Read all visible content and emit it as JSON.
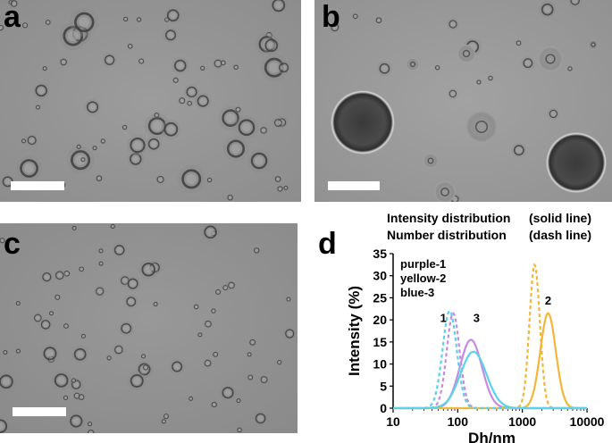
{
  "panels": {
    "a": {
      "label": "a"
    },
    "b": {
      "label": "b"
    },
    "c": {
      "label": "c"
    },
    "d": {
      "label": "d"
    }
  },
  "colors": {
    "micrograph_bg": "#8f8f8f",
    "purple": "#c68ae0",
    "yellow": "#f2b63a",
    "blue": "#5ad3ea"
  },
  "chart_data": {
    "type": "line",
    "xscale": "log",
    "xlim": [
      10,
      10000
    ],
    "ylim": [
      0,
      35
    ],
    "xticks": [
      "10",
      "100",
      "1000",
      "10000"
    ],
    "yticks": [
      "0",
      "5",
      "10",
      "15",
      "20",
      "25",
      "30",
      "35"
    ],
    "xlabel": "Dh/nm",
    "ylabel": "Intensity (%)",
    "header": [
      {
        "left": "Intensity distribution",
        "right": "(solid line)"
      },
      {
        "left": "Number distribution",
        "right": "(dash line)"
      }
    ],
    "legend": [
      "purple-1",
      "yellow-2",
      "blue-3"
    ],
    "annotations": [
      {
        "text": "1",
        "x": 60,
        "y": 19.5
      },
      {
        "text": "3",
        "x": 195,
        "y": 19.5
      },
      {
        "text": "2",
        "x": 2500,
        "y": 23.5
      }
    ],
    "series": [
      {
        "color": "#c68ae0",
        "style": "solid",
        "peak_x": 160,
        "peak_y": 15.5,
        "sigma_log": 0.17
      },
      {
        "color": "#c68ae0",
        "style": "dash",
        "peak_x": 85,
        "peak_y": 21.5,
        "sigma_log": 0.1
      },
      {
        "color": "#f2b63a",
        "style": "solid",
        "peak_x": 2500,
        "peak_y": 21.5,
        "sigma_log": 0.12
      },
      {
        "color": "#f2b63a",
        "style": "dash",
        "peak_x": 1550,
        "peak_y": 32.5,
        "sigma_log": 0.08
      },
      {
        "color": "#5ad3ea",
        "style": "solid",
        "peak_x": 175,
        "peak_y": 12.8,
        "sigma_log": 0.2
      },
      {
        "color": "#5ad3ea",
        "style": "dash",
        "peak_x": 75,
        "peak_y": 22.0,
        "sigma_log": 0.11
      }
    ]
  }
}
